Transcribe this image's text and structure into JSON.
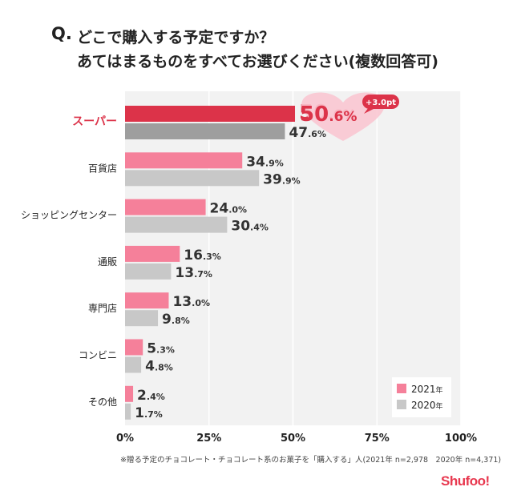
{
  "question": {
    "prefix": "Q.",
    "line1": "どこで購入する予定ですか？",
    "line2": "あてはまるものをすべてお選びください(複数回答可)"
  },
  "chart_data": {
    "type": "bar",
    "orientation": "horizontal",
    "categories": [
      "スーパー",
      "百貨店",
      "ショッピングセンター",
      "通販",
      "専門店",
      "コンビニ",
      "その他"
    ],
    "series": [
      {
        "name": "2021年",
        "values": [
          50.6,
          34.9,
          24.0,
          16.3,
          13.0,
          5.3,
          2.4
        ],
        "color": "#f5809a",
        "highlight_color": "#dc3349"
      },
      {
        "name": "2020年",
        "values": [
          47.6,
          39.9,
          30.4,
          13.7,
          9.8,
          4.8,
          1.7
        ],
        "color": "#c8c8c8",
        "highlight_color": "#9e9e9e"
      }
    ],
    "highlight_category": "スーパー",
    "highlight_label_color": "#dc3349",
    "xlim": [
      0,
      100
    ],
    "x_ticks": [
      "0%",
      "25%",
      "50%",
      "75%",
      "100%"
    ],
    "x_tick_values": [
      0,
      25,
      50,
      75,
      100
    ],
    "value_suffix": "%",
    "annotation": "+3.0pt",
    "legend": [
      {
        "year": "2021",
        "unit": "年",
        "color": "#f5809a"
      },
      {
        "year": "2020",
        "unit": "年",
        "color": "#c8c8c8"
      }
    ],
    "legend_position": "bottom-right"
  },
  "footnote": "※贈る予定のチョコレート・チョコレート系のお菓子を「購入する」人(2021年 n=2,978　2020年 n=4,371)",
  "brand": "Shufoo!"
}
